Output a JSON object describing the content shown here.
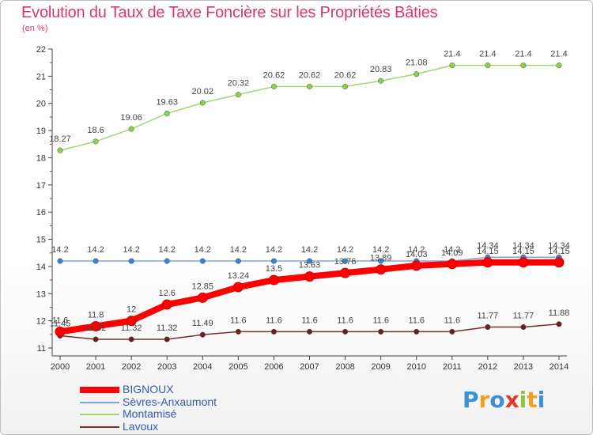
{
  "title": "Evolution du Taux de Taxe Foncière sur les Propriétés Bâties",
  "subtitle": "(en %)",
  "logo": "Proxiti",
  "chart_data": {
    "type": "line",
    "x": [
      "2000",
      "2001",
      "2002",
      "2003",
      "2004",
      "2005",
      "2006",
      "2007",
      "2008",
      "2009",
      "2010",
      "2011",
      "2012",
      "2013",
      "2014"
    ],
    "ylim": [
      11,
      22
    ],
    "y_ticks": [
      "11",
      "12",
      "13",
      "14",
      "15",
      "16",
      "17",
      "18",
      "19",
      "20",
      "21",
      "22"
    ],
    "legend_position": "bottom-left",
    "grid": false,
    "series": [
      {
        "name": "BIGNOUX",
        "color": "#ff0000",
        "values": [
          11.6,
          11.8,
          12,
          12.6,
          12.85,
          13.24,
          13.5,
          13.63,
          13.76,
          13.89,
          14.03,
          14.09,
          14.15,
          14.15,
          14.15
        ],
        "labels": [
          "11.6",
          "11.8",
          "12",
          "12.6",
          "12.85",
          "13.24",
          "13.5",
          "13.63",
          "13.76",
          "13.89",
          "14.03",
          "14.09",
          "14.15",
          "14.15",
          "14.15"
        ]
      },
      {
        "name": "Sèvres-Anxaumont",
        "color": "#7fa8d1",
        "values": [
          14.2,
          14.2,
          14.2,
          14.2,
          14.2,
          14.2,
          14.2,
          14.2,
          14.2,
          14.2,
          14.2,
          14.2,
          14.34,
          14.34,
          14.34
        ],
        "labels": [
          "14.2",
          "14.2",
          "14.2",
          "14.2",
          "14.2",
          "14.2",
          "14.2",
          "14.2",
          "14.2",
          "14.2",
          "14.2",
          "14.2",
          "14.34",
          "14.34",
          "14.34"
        ]
      },
      {
        "name": "Montamisé",
        "color": "#9fd86b",
        "values": [
          18.27,
          18.6,
          19.06,
          19.63,
          20.02,
          20.32,
          20.62,
          20.62,
          20.62,
          20.83,
          21.08,
          21.4,
          21.4,
          21.4,
          21.4
        ],
        "labels": [
          "18.27",
          "18.6",
          "19.06",
          "19.63",
          "20.02",
          "20.32",
          "20.62",
          "20.62",
          "20.62",
          "20.83",
          "21.08",
          "21.4",
          "21.4",
          "21.4",
          "21.4"
        ]
      },
      {
        "name": "Lavoux",
        "color": "#7b2b2b",
        "values": [
          11.45,
          11.32,
          11.32,
          11.32,
          11.49,
          11.6,
          11.6,
          11.6,
          11.6,
          11.6,
          11.6,
          11.6,
          11.77,
          11.77,
          11.88
        ],
        "labels": [
          "11.45",
          "11.32",
          "11.32",
          "11.32",
          "11.49",
          "11.6",
          "11.6",
          "11.6",
          "11.6",
          "11.6",
          "11.6",
          "11.6",
          "11.77",
          "11.77",
          "11.88"
        ]
      }
    ]
  }
}
